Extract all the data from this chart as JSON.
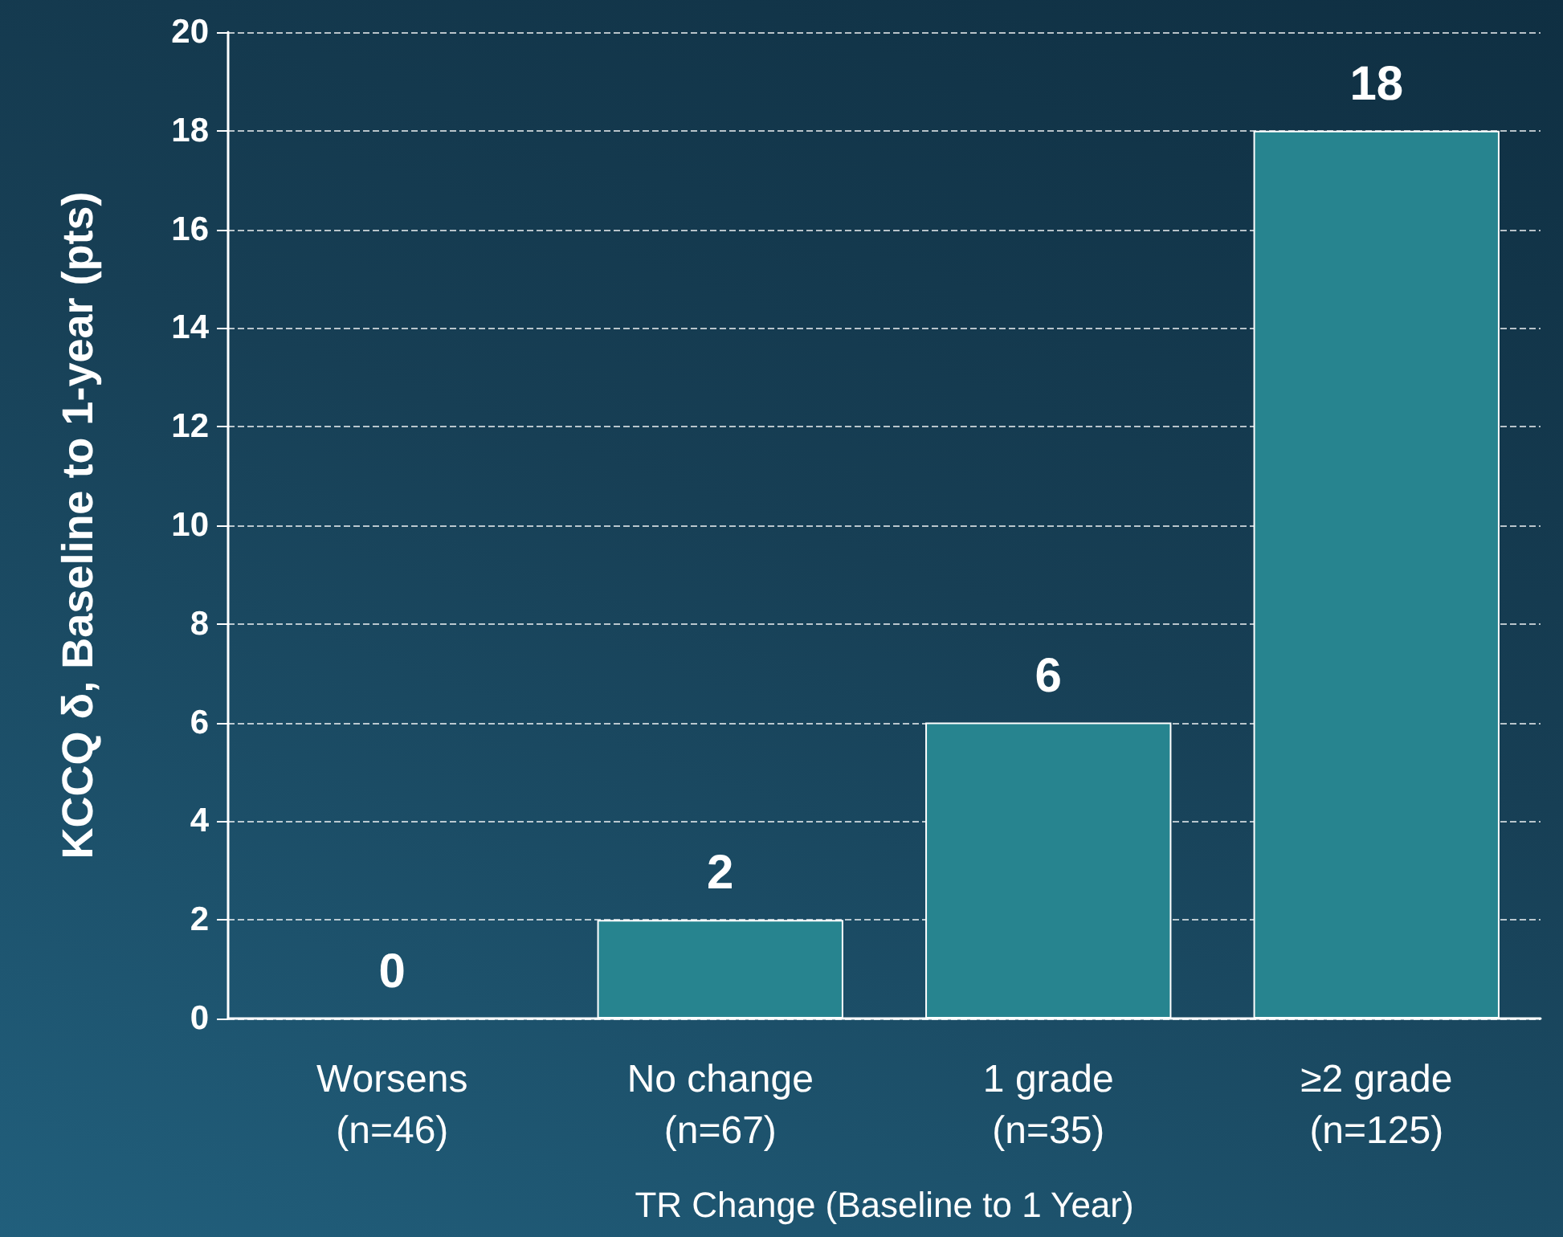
{
  "chart_data": {
    "type": "bar",
    "xlabel": "TR Change (Baseline to 1 Year)",
    "ylabel": "KCCQ δ, Baseline to 1-year (pts)",
    "categories": [
      "Worsens\n(n=46)",
      "No change\n(n=67)",
      "1 grade\n(n=35)",
      "≥2 grade\n(n=125)"
    ],
    "values": [
      0,
      2,
      6,
      18
    ],
    "color": "#27848f",
    "ylim": [
      0,
      20
    ],
    "yticks": [
      0,
      2,
      4,
      6,
      8,
      10,
      12,
      14,
      16,
      18,
      20
    ],
    "grid": "y",
    "data_labels": true
  }
}
